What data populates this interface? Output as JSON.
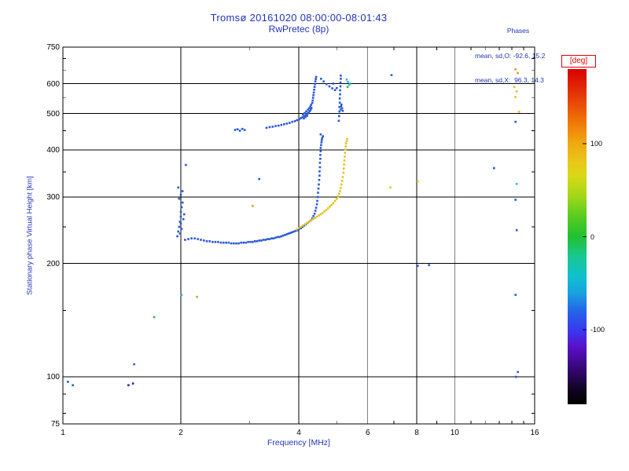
{
  "chart_data": {
    "type": "scatter",
    "title_line1": "Tromsø 20161020 08:00:00-08:01:43",
    "title_line2": "RwPretec (8p)",
    "stats_header": "Phases",
    "stats_line_o": "mean, sd,O: -92.6, 15.2",
    "stats_line_x": "mean, sd,X:  96.3, 14.3",
    "xlabel": "Frequency [MHz]",
    "ylabel": "Stationary phase Virtual Height [km]",
    "x_scale": "log",
    "x_range": [
      1,
      16
    ],
    "y_scale": "log",
    "y_range": [
      75,
      750
    ],
    "grid": true,
    "x_major_ticks": [
      {
        "v": 1,
        "label": "1"
      },
      {
        "v": 2,
        "label": "2"
      },
      {
        "v": 4,
        "label": "4"
      },
      {
        "v": 6,
        "label": "6"
      },
      {
        "v": 8,
        "label": "8"
      },
      {
        "v": 10,
        "label": "10"
      },
      {
        "v": 16,
        "label": "16"
      }
    ],
    "x_minor_ticks": [
      3,
      5,
      7,
      9,
      11,
      12,
      13,
      14,
      15
    ],
    "grid_x": [
      2,
      4,
      6,
      8,
      10
    ],
    "y_major_ticks": [
      {
        "v": 75,
        "label": "75"
      },
      {
        "v": 100,
        "label": "100"
      },
      {
        "v": 200,
        "label": "200"
      },
      {
        "v": 300,
        "label": "300"
      },
      {
        "v": 400,
        "label": "400"
      },
      {
        "v": 500,
        "label": "500"
      },
      {
        "v": 600,
        "label": "600"
      },
      {
        "v": 750,
        "label": "750"
      }
    ],
    "y_minor_ticks": [
      80,
      90,
      150,
      250,
      350,
      450,
      550,
      650,
      700
    ],
    "grid_y": [
      100,
      200,
      300,
      400,
      500,
      600
    ],
    "palette": {
      "blue": "#2857d8",
      "navy": "#1b2e9e",
      "cyan": "#2bb5e0",
      "teal": "#2fc9a8",
      "green": "#35b84a",
      "yellow": "#e3c125",
      "gold": "#cfa51c",
      "orange": "#ef8f1c",
      "red": "#d83020"
    },
    "colorbar": {
      "title": "[deg]",
      "range": [
        -180,
        180
      ],
      "labels": [
        {
          "v": 100,
          "label": "100"
        },
        {
          "v": 0,
          "label": "0"
        },
        {
          "v": -100,
          "label": "-100"
        }
      ],
      "stops": [
        [
          0.0,
          "#000000"
        ],
        [
          0.05,
          "#140428"
        ],
        [
          0.11,
          "#38077a"
        ],
        [
          0.17,
          "#5a10c8"
        ],
        [
          0.22,
          "#3838f0"
        ],
        [
          0.28,
          "#2466e8"
        ],
        [
          0.33,
          "#18a0e0"
        ],
        [
          0.38,
          "#10c0d0"
        ],
        [
          0.44,
          "#18c892"
        ],
        [
          0.5,
          "#20c030"
        ],
        [
          0.56,
          "#58cc20"
        ],
        [
          0.62,
          "#a0d818"
        ],
        [
          0.68,
          "#d8d818"
        ],
        [
          0.72,
          "#e8c818"
        ],
        [
          0.78,
          "#f0a810"
        ],
        [
          0.84,
          "#f07808"
        ],
        [
          0.9,
          "#e84808"
        ],
        [
          1.0,
          "#d80000"
        ]
      ]
    },
    "series": [
      {
        "name": "e-region-scatter",
        "color": "blue",
        "points": [
          [
            1.96,
            236
          ],
          [
            1.97,
            243
          ],
          [
            1.98,
            250
          ],
          [
            1.99,
            258
          ],
          [
            2.0,
            266
          ],
          [
            2.0,
            274
          ],
          [
            2.01,
            282
          ],
          [
            2.02,
            290
          ],
          [
            1.98,
            297
          ],
          [
            2.0,
            304
          ],
          [
            2.02,
            311
          ],
          [
            1.97,
            318
          ],
          [
            2.0,
            255
          ],
          [
            2.01,
            247
          ],
          [
            1.99,
            240
          ],
          [
            2.03,
            262
          ],
          [
            2.04,
            270
          ],
          [
            2.06,
            365
          ]
        ]
      },
      {
        "name": "f-trace-o",
        "color": "blue",
        "points": [
          [
            2.05,
            231
          ],
          [
            2.09,
            232
          ],
          [
            2.13,
            233
          ],
          [
            2.17,
            233
          ],
          [
            2.21,
            232
          ],
          [
            2.25,
            231
          ],
          [
            2.29,
            230
          ],
          [
            2.33,
            229
          ],
          [
            2.37,
            229
          ],
          [
            2.41,
            228
          ],
          [
            2.45,
            228
          ],
          [
            2.49,
            228
          ],
          [
            2.53,
            227
          ],
          [
            2.57,
            227
          ],
          [
            2.61,
            227
          ],
          [
            2.65,
            227
          ],
          [
            2.69,
            226
          ],
          [
            2.73,
            226
          ],
          [
            2.77,
            226
          ],
          [
            2.81,
            226
          ],
          [
            2.85,
            227
          ],
          [
            2.89,
            227
          ],
          [
            2.93,
            227
          ],
          [
            2.97,
            228
          ],
          [
            3.01,
            228
          ],
          [
            3.05,
            228
          ],
          [
            3.09,
            229
          ],
          [
            3.13,
            229
          ],
          [
            3.17,
            230
          ],
          [
            3.21,
            230
          ],
          [
            3.25,
            231
          ],
          [
            3.29,
            231
          ],
          [
            3.33,
            232
          ],
          [
            3.37,
            232
          ],
          [
            3.41,
            233
          ],
          [
            3.45,
            233
          ],
          [
            3.49,
            234
          ],
          [
            3.53,
            235
          ],
          [
            3.57,
            235
          ],
          [
            3.61,
            236
          ],
          [
            3.65,
            237
          ],
          [
            3.69,
            238
          ],
          [
            3.73,
            239
          ],
          [
            3.77,
            240
          ],
          [
            3.81,
            241
          ],
          [
            3.85,
            242
          ],
          [
            3.89,
            243
          ],
          [
            3.93,
            244
          ],
          [
            3.97,
            245
          ],
          [
            4.01,
            247
          ],
          [
            4.05,
            248
          ],
          [
            4.09,
            250
          ],
          [
            4.13,
            252
          ],
          [
            4.17,
            254
          ],
          [
            4.21,
            256
          ],
          [
            4.25,
            258
          ],
          [
            4.29,
            260
          ],
          [
            4.33,
            263
          ],
          [
            4.36,
            267
          ],
          [
            4.39,
            271
          ],
          [
            4.41,
            276
          ],
          [
            4.43,
            281
          ],
          [
            4.45,
            287
          ],
          [
            4.46,
            293
          ],
          [
            4.47,
            300
          ],
          [
            4.48,
            308
          ],
          [
            4.49,
            316
          ],
          [
            4.5,
            324
          ],
          [
            4.51,
            333
          ],
          [
            4.52,
            342
          ],
          [
            4.52,
            351
          ],
          [
            4.53,
            360
          ],
          [
            4.53,
            370
          ],
          [
            4.54,
            379
          ],
          [
            4.54,
            388
          ],
          [
            4.55,
            397
          ],
          [
            4.55,
            405
          ],
          [
            4.56,
            412
          ],
          [
            4.57,
            419
          ],
          [
            4.58,
            425
          ],
          [
            4.59,
            430
          ],
          [
            4.61,
            435
          ],
          [
            4.55,
            440
          ]
        ]
      },
      {
        "name": "f-trace-x",
        "color": "yellow",
        "points": [
          [
            3.95,
            246
          ],
          [
            4.0,
            248
          ],
          [
            4.05,
            250
          ],
          [
            4.1,
            252
          ],
          [
            4.15,
            254
          ],
          [
            4.2,
            256
          ],
          [
            4.25,
            258
          ],
          [
            4.3,
            260
          ],
          [
            4.35,
            262
          ],
          [
            4.4,
            264
          ],
          [
            4.45,
            266
          ],
          [
            4.5,
            268
          ],
          [
            4.55,
            270
          ],
          [
            4.6,
            272
          ],
          [
            4.65,
            275
          ],
          [
            4.7,
            277
          ],
          [
            4.75,
            280
          ],
          [
            4.8,
            283
          ],
          [
            4.85,
            286
          ],
          [
            4.9,
            289
          ],
          [
            4.95,
            293
          ],
          [
            5.0,
            297
          ],
          [
            5.04,
            301
          ],
          [
            5.07,
            306
          ],
          [
            5.1,
            311
          ],
          [
            5.12,
            317
          ],
          [
            5.14,
            324
          ],
          [
            5.16,
            331
          ],
          [
            5.18,
            339
          ],
          [
            5.2,
            348
          ],
          [
            5.21,
            357
          ],
          [
            5.22,
            366
          ],
          [
            5.23,
            375
          ],
          [
            5.24,
            384
          ],
          [
            5.25,
            393
          ],
          [
            5.26,
            401
          ],
          [
            5.27,
            409
          ],
          [
            5.28,
            416
          ],
          [
            5.3,
            422
          ],
          [
            5.32,
            428
          ]
        ]
      },
      {
        "name": "upper-trace",
        "color": "blue",
        "points": [
          [
            2.75,
            452
          ],
          [
            2.79,
            454
          ],
          [
            2.83,
            450
          ],
          [
            2.87,
            455
          ],
          [
            2.91,
            452
          ],
          [
            3.31,
            458
          ],
          [
            3.37,
            460
          ],
          [
            3.43,
            461
          ],
          [
            3.49,
            463
          ],
          [
            3.55,
            464
          ],
          [
            3.61,
            466
          ],
          [
            3.67,
            468
          ],
          [
            3.73,
            470
          ],
          [
            3.79,
            472
          ],
          [
            3.85,
            475
          ],
          [
            3.91,
            477
          ],
          [
            3.96,
            480
          ],
          [
            4.01,
            483
          ],
          [
            4.05,
            486
          ],
          [
            4.09,
            489
          ],
          [
            4.13,
            492
          ],
          [
            4.17,
            495
          ],
          [
            4.21,
            499
          ],
          [
            4.24,
            503
          ],
          [
            4.27,
            507
          ],
          [
            4.29,
            512
          ],
          [
            4.31,
            517
          ],
          [
            4.1,
            497
          ],
          [
            4.14,
            501
          ],
          [
            4.18,
            506
          ],
          [
            4.22,
            511
          ],
          [
            4.25,
            516
          ],
          [
            4.2,
            493
          ],
          [
            4.16,
            489
          ],
          [
            4.12,
            485
          ],
          [
            4.28,
            521
          ],
          [
            4.3,
            527
          ],
          [
            4.33,
            533
          ],
          [
            4.34,
            541
          ],
          [
            4.35,
            550
          ],
          [
            4.36,
            559
          ],
          [
            4.37,
            568
          ],
          [
            4.38,
            578
          ],
          [
            4.39,
            588
          ],
          [
            4.4,
            598
          ],
          [
            4.41,
            608
          ],
          [
            4.42,
            617
          ],
          [
            4.43,
            625
          ],
          [
            4.56,
            618
          ],
          [
            4.63,
            608
          ],
          [
            4.71,
            598
          ],
          [
            4.79,
            590
          ],
          [
            4.87,
            583
          ],
          [
            4.95,
            577
          ],
          [
            5.0,
            584
          ],
          [
            4.9,
            600
          ],
          [
            5.06,
            478
          ],
          [
            5.07,
            492
          ],
          [
            5.08,
            506
          ],
          [
            5.08,
            520
          ],
          [
            5.09,
            534
          ],
          [
            5.09,
            548
          ],
          [
            5.1,
            562
          ],
          [
            5.1,
            576
          ],
          [
            5.11,
            590
          ],
          [
            5.11,
            604
          ],
          [
            5.12,
            618
          ],
          [
            5.12,
            630
          ],
          [
            5.13,
            522
          ],
          [
            5.16,
            516
          ],
          [
            5.14,
            528
          ],
          [
            5.12,
            512
          ],
          [
            5.18,
            508
          ],
          [
            6.9,
            632
          ]
        ]
      },
      {
        "name": "upper-cluster-cyan",
        "color": "cyan",
        "points": [
          [
            5.3,
            615
          ],
          [
            5.34,
            606
          ],
          [
            5.41,
            600
          ]
        ]
      },
      {
        "name": "upper-cluster-teal",
        "color": "teal",
        "points": [
          [
            5.38,
            596
          ]
        ]
      },
      {
        "name": "upper-cluster-green",
        "color": "green",
        "points": [
          [
            5.33,
            588
          ]
        ]
      },
      {
        "name": "stray-blue",
        "color": "blue",
        "points": [
          [
            1.03,
            97
          ],
          [
            1.06,
            95
          ],
          [
            1.52,
            108
          ],
          [
            3.17,
            335
          ],
          [
            8.05,
            197
          ],
          [
            8.6,
            198
          ],
          [
            12.6,
            358
          ],
          [
            14.3,
            475
          ],
          [
            14.3,
            295
          ],
          [
            14.4,
            245
          ],
          [
            14.3,
            165
          ],
          [
            14.5,
            103
          ],
          [
            14.35,
            100
          ]
        ]
      },
      {
        "name": "stray-navy",
        "color": "navy",
        "points": [
          [
            1.47,
            95
          ],
          [
            1.51,
            96
          ]
        ]
      },
      {
        "name": "stray-green",
        "color": "green",
        "points": [
          [
            1.71,
            144
          ]
        ]
      },
      {
        "name": "stray-cyan",
        "color": "cyan",
        "points": [
          [
            2.01,
            165
          ],
          [
            14.4,
            325
          ]
        ]
      },
      {
        "name": "stray-gold",
        "color": "gold",
        "points": [
          [
            2.2,
            163
          ],
          [
            3.05,
            284
          ]
        ]
      },
      {
        "name": "stray-yellow",
        "color": "yellow",
        "points": [
          [
            6.85,
            318
          ],
          [
            8.05,
            330
          ],
          [
            14.2,
            588
          ],
          [
            14.4,
            572
          ],
          [
            14.3,
            553
          ],
          [
            14.6,
            505
          ]
        ]
      },
      {
        "name": "stray-orange",
        "color": "orange",
        "points": [
          [
            14.3,
            655
          ],
          [
            14.5,
            640
          ]
        ]
      }
    ]
  }
}
